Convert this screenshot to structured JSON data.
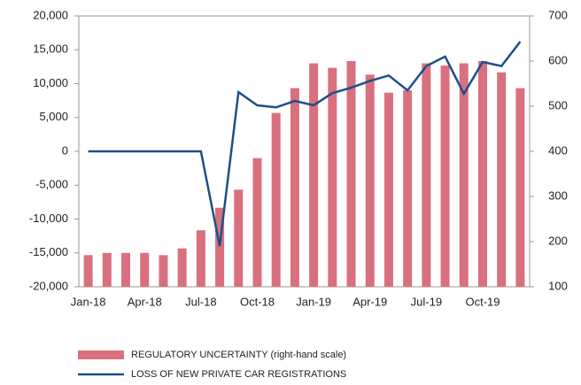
{
  "chart_data": {
    "type": "bar-line",
    "categories": [
      "Jan-18",
      null,
      null,
      "Apr-18",
      null,
      null,
      "Jul-18",
      null,
      null,
      "Oct-18",
      null,
      null,
      "Jan-19",
      null,
      null,
      "Apr-19",
      null,
      null,
      "Jul-19",
      null,
      null,
      "Oct-19",
      null,
      null
    ],
    "series": [
      {
        "name": "REGULATORY UNCERTAINTY (right-hand scale)",
        "type": "bar",
        "axis": "y2",
        "color": "#d9707e",
        "values": [
          170,
          175,
          175,
          175,
          170,
          185,
          225,
          275,
          315,
          385,
          485,
          540,
          595,
          585,
          600,
          570,
          530,
          535,
          595,
          590,
          595,
          600,
          575,
          540
        ]
      },
      {
        "name": "LOSS OF NEW PRIVATE CAR REGISTRATIONS",
        "type": "line",
        "axis": "y",
        "color": "#1f4e8a",
        "values": [
          0,
          0,
          0,
          0,
          0,
          0,
          0,
          -14000,
          8750,
          6800,
          6500,
          7450,
          6800,
          8600,
          9400,
          10400,
          11200,
          9000,
          12600,
          14000,
          8500,
          13200,
          12600,
          16200
        ]
      }
    ],
    "ylim": [
      -20000,
      20000
    ],
    "yticks": [
      {
        "value": -20000,
        "label": "-20,000"
      },
      {
        "value": -15000,
        "label": "-15,000"
      },
      {
        "value": -10000,
        "label": "-10,000"
      },
      {
        "value": -5000,
        "label": "-5,000"
      },
      0,
      {
        "value": 5000,
        "label": "5,000"
      },
      {
        "value": 10000,
        "label": "10,000"
      },
      {
        "value": 15000,
        "label": "15,000"
      },
      {
        "value": 20000,
        "label": "20,000"
      }
    ],
    "y2lim": [
      100,
      700
    ],
    "y2ticks": [
      100,
      200,
      300,
      400,
      500,
      600,
      700
    ],
    "legend": "bottom-left"
  }
}
